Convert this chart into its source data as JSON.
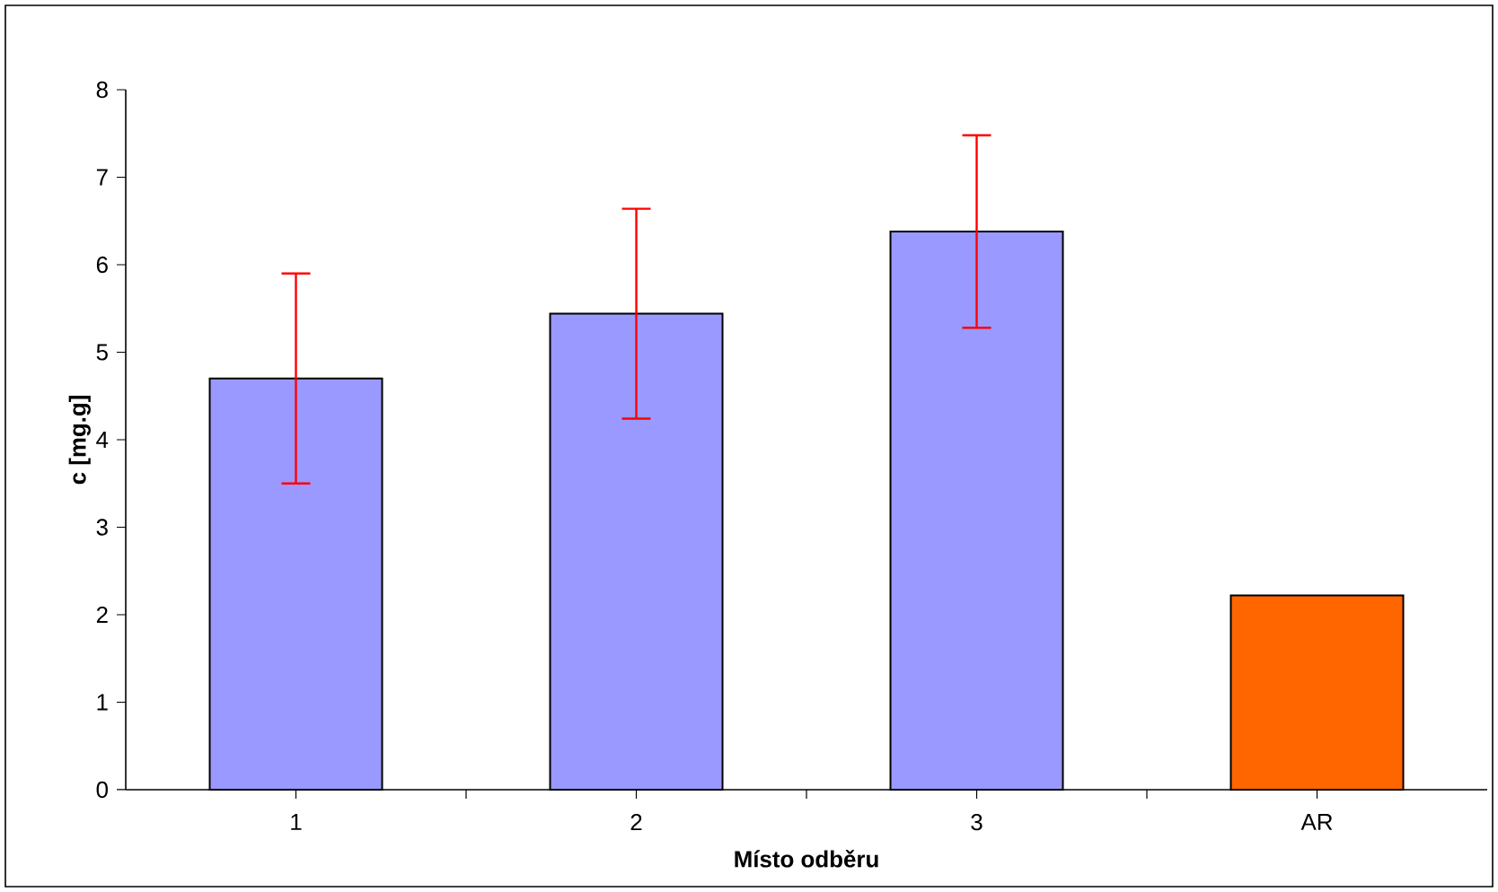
{
  "chart_data": {
    "type": "bar",
    "xlabel": "**Místo odběru**",
    "ylabel": "**c [mg.g]**",
    "categories": [
      "1",
      "2",
      "3",
      "AR"
    ],
    "values": [
      4.7,
      5.44,
      6.38,
      2.22
    ],
    "colors": [
      "#9999ff",
      "#9999ff",
      "#9999ff",
      "#ff6600"
    ],
    "errors": [
      1.2,
      1.2,
      1.1,
      null
    ],
    "ylim": [
      0,
      8
    ],
    "yticks": [
      0,
      1,
      2,
      3,
      4,
      5,
      6,
      7,
      8
    ]
  }
}
